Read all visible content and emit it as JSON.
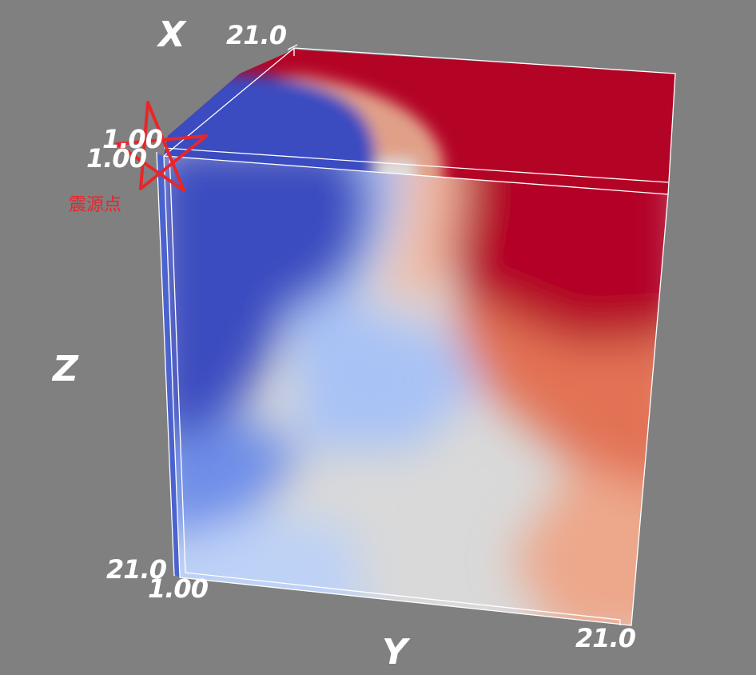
{
  "axes": {
    "x_title": "X",
    "y_title": "Y",
    "z_title": "Z",
    "x_max_tick": "21.0",
    "x_min_tick": "1.00",
    "y_min_tick": "1.00",
    "y_min_tick_front": "1.00",
    "z_max_tick": "21.0",
    "y_max_tick": "21.0"
  },
  "annotation": {
    "label": "震源点",
    "marker": "star-icon",
    "color": "#e8262a"
  },
  "colormap": {
    "name": "coolwarm",
    "low": "#3b4cc0",
    "mid": "#dddddd",
    "high": "#b40426",
    "background": "#808080"
  }
}
